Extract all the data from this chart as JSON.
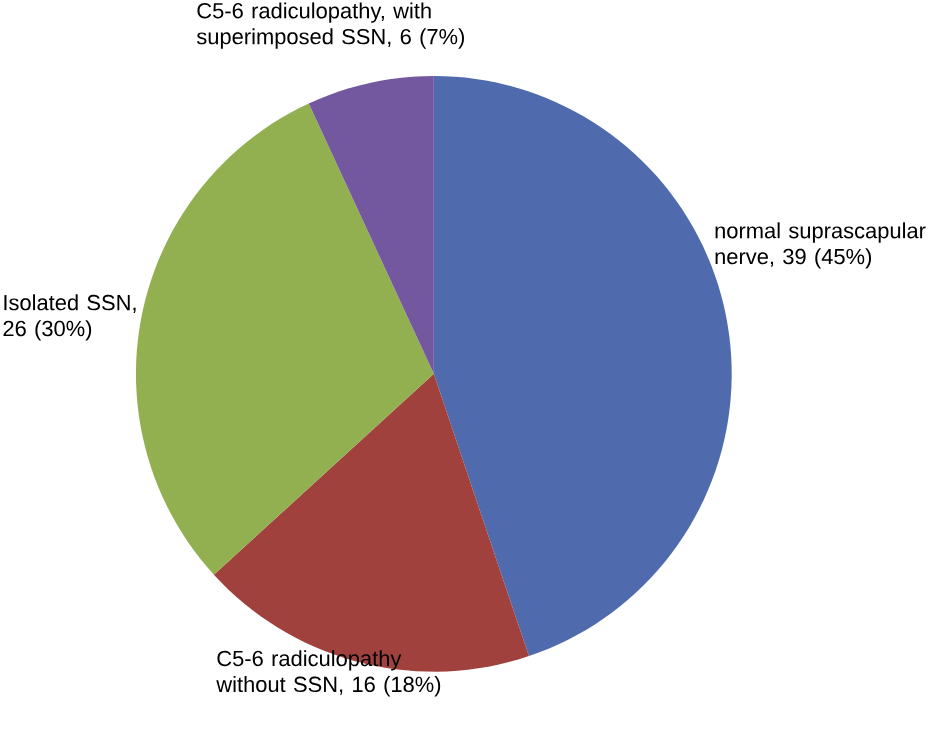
{
  "chart_data": {
    "type": "pie",
    "categories": [
      "normal suprascapular nerve, 39 (45%)",
      "C5-6 radiculopathy without SSN, 16 (18%)",
      "Isolated SSN, 26 (30%)",
      "C5-6 radiculopathy, with superimposed SSN, 6 (7%)"
    ],
    "values": [
      39,
      16,
      26,
      6
    ],
    "colors": [
      "#4f6bad",
      "#a0413e",
      "#92b050",
      "#7358a0"
    ]
  }
}
